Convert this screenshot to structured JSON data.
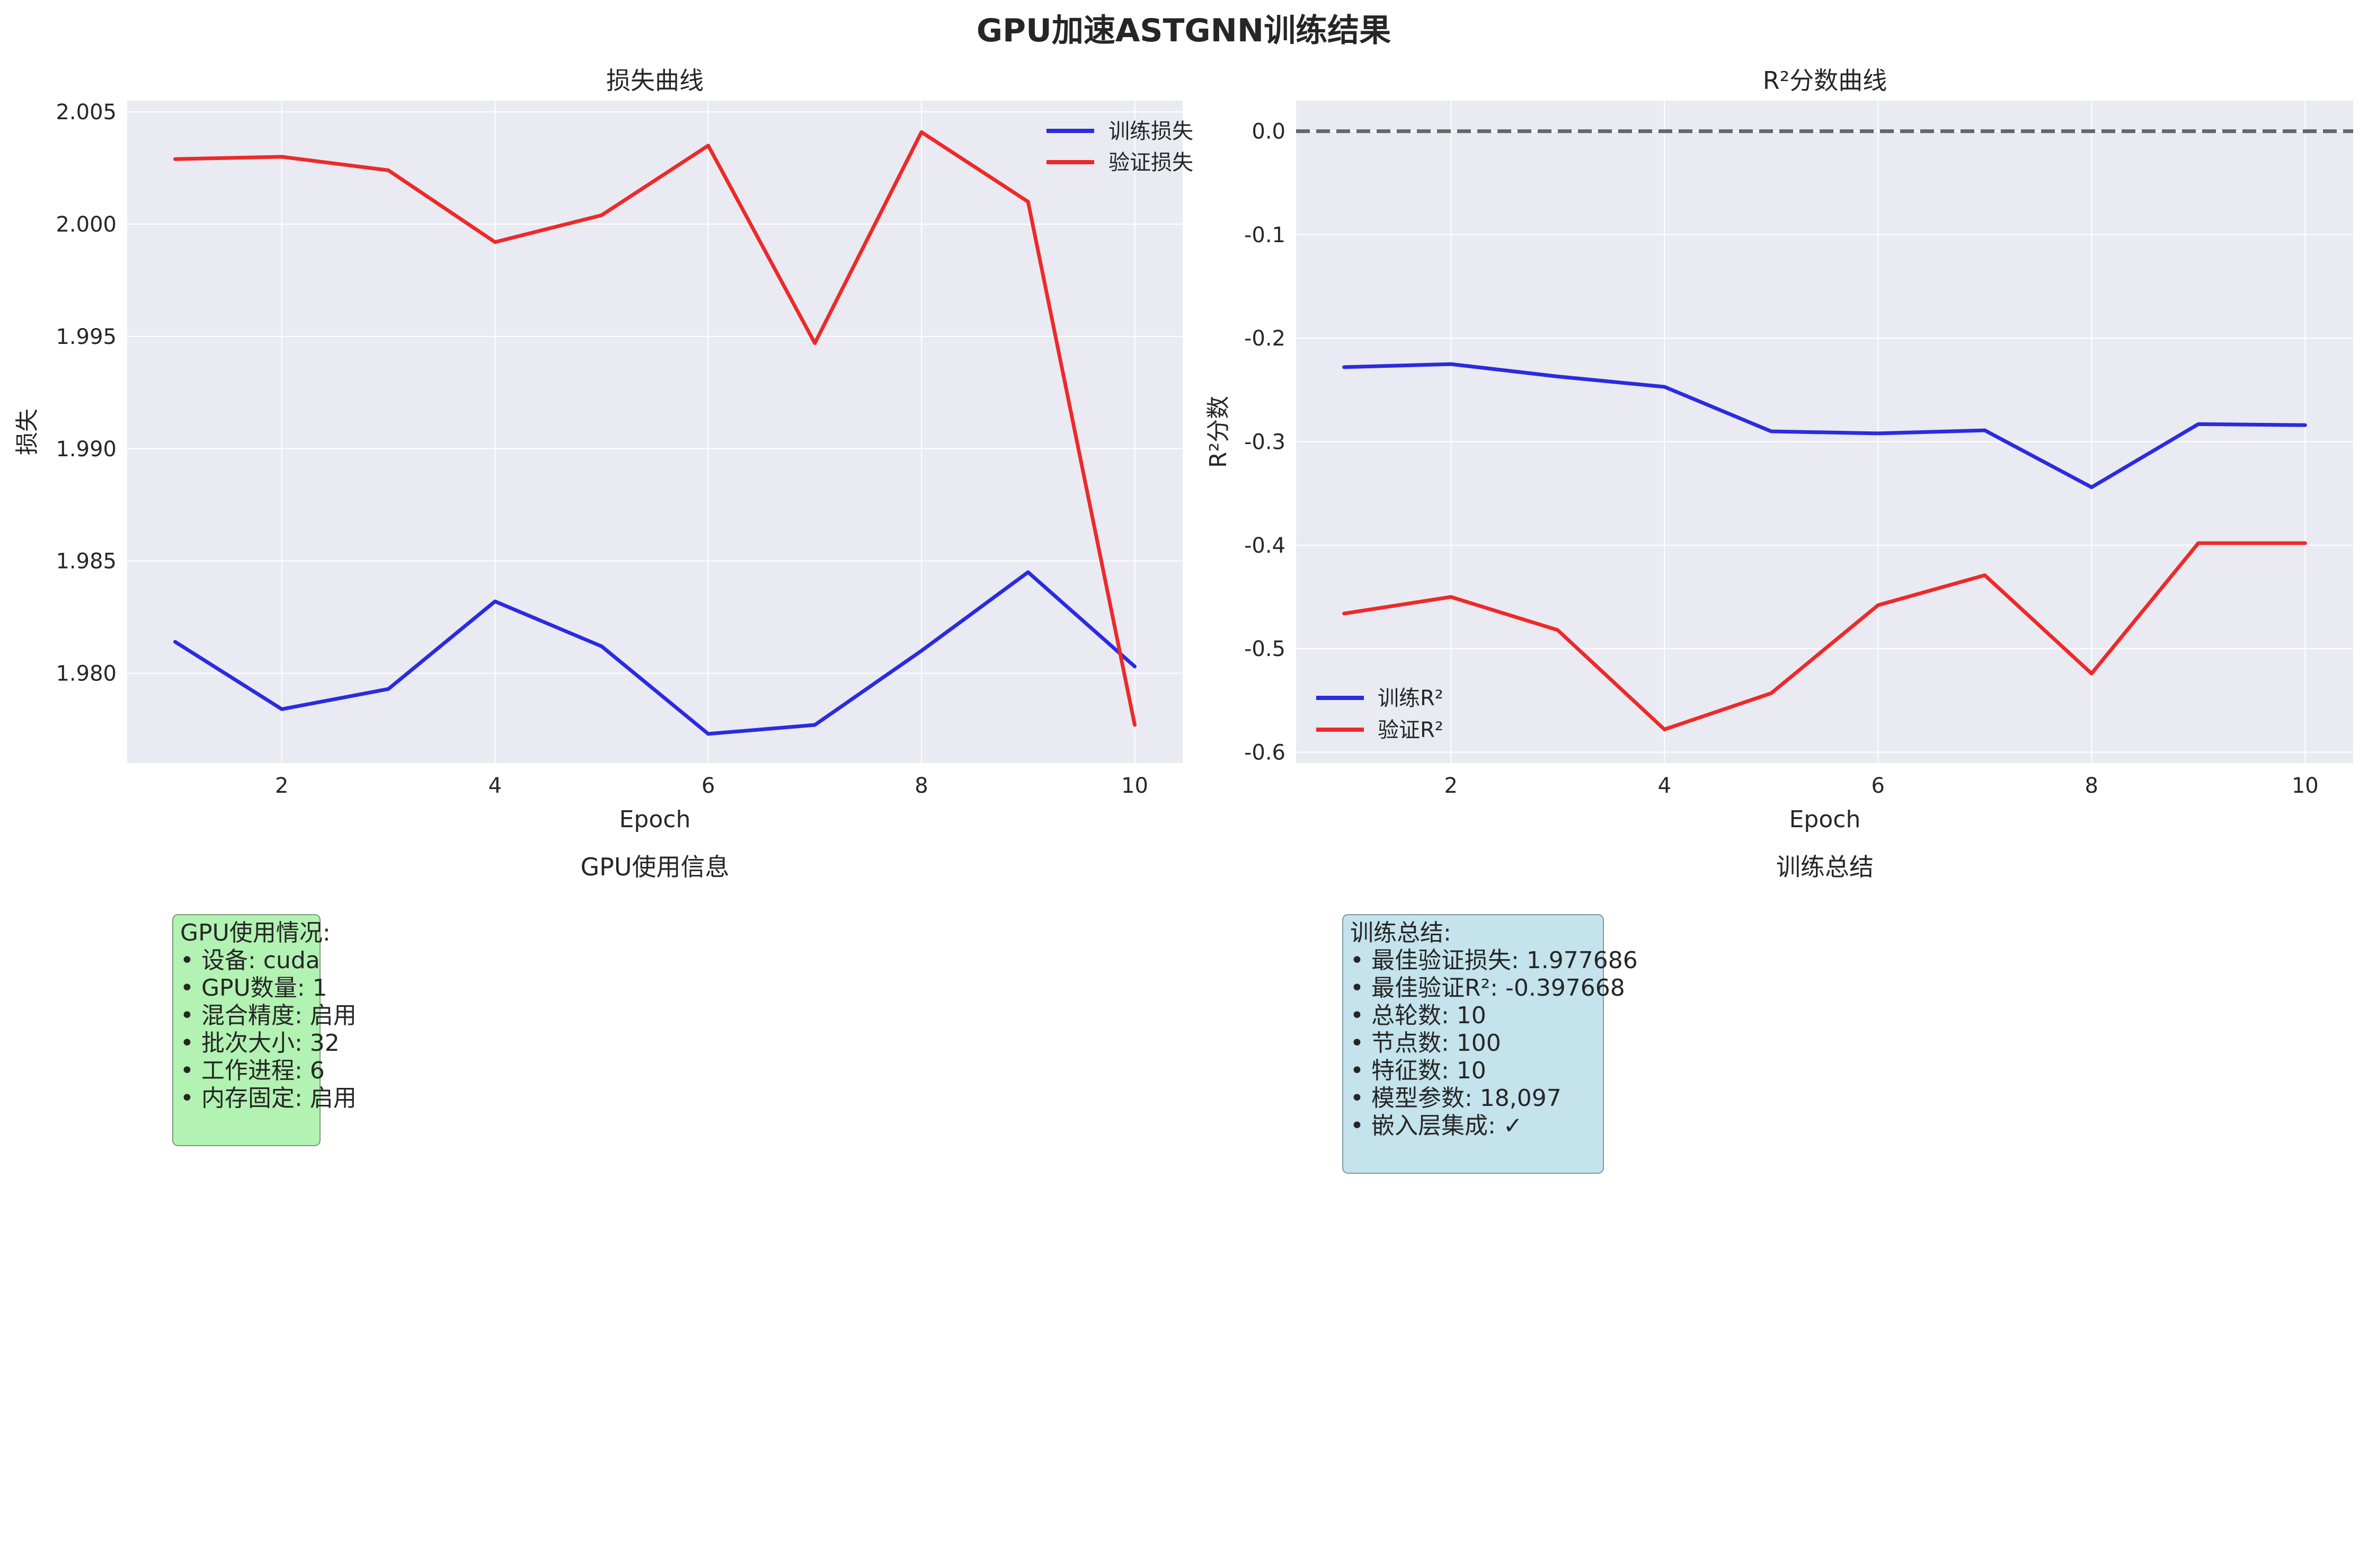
{
  "figure_title": "GPU加速ASTGNN训练结果",
  "colors": {
    "train": "#2b2bdf",
    "val": "#ec2a2a",
    "panel_bg": "#eaeaf2",
    "grid": "#ffffff",
    "zero_line": "#666666",
    "gpu_box": "#b2f2b2",
    "summary_box": "#c4e3ec"
  },
  "chart_data": [
    {
      "type": "line",
      "title": "损失曲线",
      "xlabel": "Epoch",
      "ylabel": "损失",
      "x": [
        1,
        2,
        3,
        4,
        5,
        6,
        7,
        8,
        9,
        10
      ],
      "xlim": [
        0.55,
        10.45
      ],
      "ylim": [
        1.976,
        2.0055
      ],
      "xticks": [
        2,
        4,
        6,
        8,
        10
      ],
      "yticks": [
        1.98,
        1.985,
        1.99,
        1.995,
        2.0,
        2.005
      ],
      "ytick_labels": [
        "1.980",
        "1.985",
        "1.990",
        "1.995",
        "2.000",
        "2.005"
      ],
      "legend_position": "upper right",
      "grid": true,
      "series": [
        {
          "name": "训练损失",
          "color": "#2b2bdf",
          "values": [
            1.9814,
            1.9784,
            1.9793,
            1.9832,
            1.9812,
            1.9773,
            1.9777,
            1.981,
            1.9845,
            1.9803
          ]
        },
        {
          "name": "验证损失",
          "color": "#ec2a2a",
          "values": [
            2.0029,
            2.003,
            2.0024,
            1.9992,
            2.0004,
            2.0035,
            1.9947,
            2.0041,
            2.001,
            1.9777
          ]
        }
      ]
    },
    {
      "type": "line",
      "title": "R²分数曲线",
      "xlabel": "Epoch",
      "ylabel": "R²分数",
      "x": [
        1,
        2,
        3,
        4,
        5,
        6,
        7,
        8,
        9,
        10
      ],
      "xlim": [
        0.55,
        10.45
      ],
      "ylim": [
        -0.6105,
        0.0295
      ],
      "xticks": [
        2,
        4,
        6,
        8,
        10
      ],
      "yticks": [
        0.0,
        -0.1,
        -0.2,
        -0.3,
        -0.4,
        -0.5,
        -0.6
      ],
      "ytick_labels": [
        "0.0",
        "-0.1",
        "-0.2",
        "-0.3",
        "-0.4",
        "-0.5",
        "-0.6"
      ],
      "reference_line": 0.0,
      "legend_position": "lower left",
      "grid": true,
      "series": [
        {
          "name": "训练R²",
          "color": "#2b2bdf",
          "values": [
            -0.228,
            -0.225,
            -0.237,
            -0.247,
            -0.29,
            -0.292,
            -0.289,
            -0.344,
            -0.283,
            -0.284
          ]
        },
        {
          "name": "验证R²",
          "color": "#ec2a2a",
          "values": [
            -0.466,
            -0.45,
            -0.482,
            -0.578,
            -0.543,
            -0.458,
            -0.429,
            -0.524,
            -0.398,
            -0.398
          ]
        }
      ]
    }
  ],
  "gpu_panel": {
    "title": "GPU使用信息",
    "lines": [
      "GPU使用情况:",
      "• 设备: cuda",
      "• GPU数量: 1",
      "• 混合精度: 启用",
      "• 批次大小: 32",
      "• 工作进程: 6",
      "• 内存固定: 启用"
    ]
  },
  "summary_panel": {
    "title": "训练总结",
    "lines": [
      "训练总结:",
      "• 最佳验证损失: 1.977686",
      "• 最佳验证R²: -0.397668",
      "• 总轮数: 10",
      "• 节点数: 100",
      "• 特征数: 10",
      "• 模型参数: 18,097",
      "• 嵌入层集成: ✓"
    ]
  }
}
